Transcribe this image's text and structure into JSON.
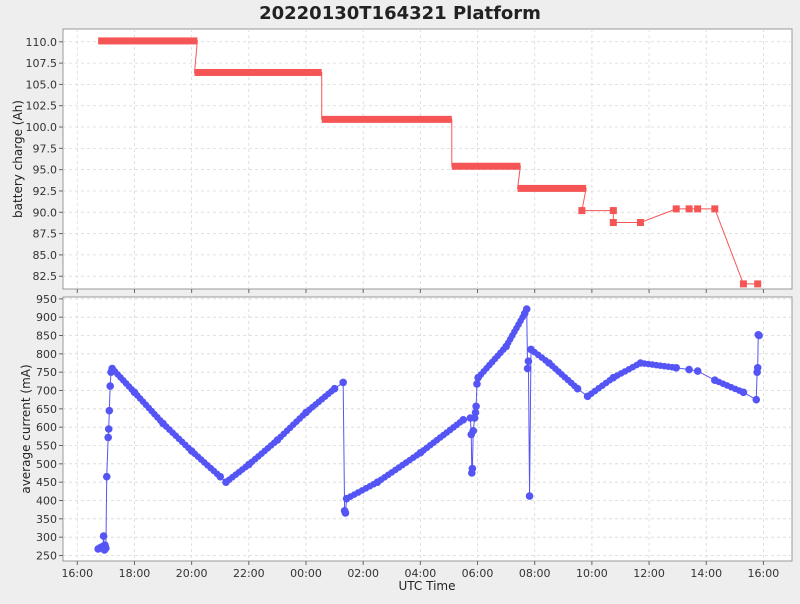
{
  "chart_data": {
    "title": "20220130T164321 Platform",
    "xlabel": "UTC Time",
    "x_unit": "hours since 16:00 UTC (Jan 30 → Jan 31)",
    "x_ticks": [
      {
        "t": 0,
        "label": "16:00"
      },
      {
        "t": 2,
        "label": "18:00"
      },
      {
        "t": 4,
        "label": "20:00"
      },
      {
        "t": 6,
        "label": "22:00"
      },
      {
        "t": 8,
        "label": "00:00"
      },
      {
        "t": 10,
        "label": "02:00"
      },
      {
        "t": 12,
        "label": "04:00"
      },
      {
        "t": 14,
        "label": "06:00"
      },
      {
        "t": 16,
        "label": "08:00"
      },
      {
        "t": 18,
        "label": "10:00"
      },
      {
        "t": 20,
        "label": "12:00"
      },
      {
        "t": 22,
        "label": "14:00"
      },
      {
        "t": 24,
        "label": "16:00"
      }
    ],
    "xlim": [
      -0.5,
      25
    ],
    "grid": true,
    "series_color": {
      "battery": "#f55555",
      "current": "#5555f5"
    },
    "panels": [
      {
        "type": "step-line",
        "ylabel": "battery charge (Ah)",
        "ylim": [
          81,
          111.5
        ],
        "yticks": [
          "82.5",
          "85.0",
          "87.5",
          "90.0",
          "92.5",
          "95.0",
          "97.5",
          "100.0",
          "102.5",
          "105.0",
          "107.5",
          "110.0"
        ],
        "series": [
          {
            "segments": [
              {
                "x0": 0.73,
                "x1": 4.2,
                "y": 110.1
              },
              {
                "x0": 4.1,
                "x1": 8.55,
                "y": 106.4
              },
              {
                "x0": 8.55,
                "x1": 13.1,
                "y": 100.9
              },
              {
                "x0": 13.1,
                "x1": 15.5,
                "y": 95.4
              },
              {
                "x0": 15.4,
                "x1": 17.8,
                "y": 92.8
              }
            ],
            "points": [
              {
                "x": 17.65,
                "y": 90.2
              },
              {
                "x": 18.75,
                "y": 90.2
              },
              {
                "x": 18.75,
                "y": 88.8
              },
              {
                "x": 19.7,
                "y": 88.8
              },
              {
                "x": 20.95,
                "y": 90.4
              },
              {
                "x": 21.4,
                "y": 90.4
              },
              {
                "x": 21.7,
                "y": 90.4
              },
              {
                "x": 22.3,
                "y": 90.4
              },
              {
                "x": 23.3,
                "y": 81.6
              },
              {
                "x": 23.8,
                "y": 81.6
              }
            ]
          }
        ]
      },
      {
        "type": "line",
        "ylabel": "average current (mA)",
        "ylim": [
          235,
          955
        ],
        "yticks": [
          "250",
          "300",
          "350",
          "400",
          "450",
          "500",
          "550",
          "600",
          "650",
          "700",
          "750",
          "800",
          "850",
          "900",
          "950"
        ],
        "series": [
          {
            "points": [
              {
                "x": 0.73,
                "y": 268
              },
              {
                "x": 0.82,
                "y": 272
              },
              {
                "x": 0.9,
                "y": 275
              },
              {
                "x": 0.92,
                "y": 303
              },
              {
                "x": 0.95,
                "y": 265
              },
              {
                "x": 0.97,
                "y": 278
              },
              {
                "x": 1.0,
                "y": 270
              },
              {
                "x": 1.03,
                "y": 465
              },
              {
                "x": 1.08,
                "y": 572
              },
              {
                "x": 1.1,
                "y": 595
              },
              {
                "x": 1.12,
                "y": 645
              },
              {
                "x": 1.15,
                "y": 712
              },
              {
                "x": 1.18,
                "y": 750
              },
              {
                "x": 1.22,
                "y": 760
              },
              {
                "x": 2.0,
                "y": 695
              },
              {
                "x": 3.0,
                "y": 610
              },
              {
                "x": 4.0,
                "y": 535
              },
              {
                "x": 5.0,
                "y": 465
              },
              {
                "x": 5.2,
                "y": 450
              },
              {
                "x": 6.0,
                "y": 498
              },
              {
                "x": 7.0,
                "y": 565
              },
              {
                "x": 8.0,
                "y": 640
              },
              {
                "x": 9.0,
                "y": 705
              },
              {
                "x": 9.3,
                "y": 722
              },
              {
                "x": 9.35,
                "y": 372
              },
              {
                "x": 9.38,
                "y": 366
              },
              {
                "x": 9.42,
                "y": 405
              },
              {
                "x": 10.5,
                "y": 450
              },
              {
                "x": 12.0,
                "y": 530
              },
              {
                "x": 13.5,
                "y": 620
              },
              {
                "x": 13.75,
                "y": 625
              },
              {
                "x": 13.78,
                "y": 580
              },
              {
                "x": 13.8,
                "y": 475
              },
              {
                "x": 13.82,
                "y": 487
              },
              {
                "x": 13.85,
                "y": 590
              },
              {
                "x": 13.9,
                "y": 625
              },
              {
                "x": 13.93,
                "y": 640
              },
              {
                "x": 13.95,
                "y": 657
              },
              {
                "x": 13.98,
                "y": 718
              },
              {
                "x": 14.02,
                "y": 735
              },
              {
                "x": 15.0,
                "y": 820
              },
              {
                "x": 15.65,
                "y": 910
              },
              {
                "x": 15.72,
                "y": 922
              },
              {
                "x": 15.75,
                "y": 760
              },
              {
                "x": 15.78,
                "y": 780
              },
              {
                "x": 15.82,
                "y": 412
              },
              {
                "x": 15.87,
                "y": 812
              },
              {
                "x": 16.5,
                "y": 775
              },
              {
                "x": 17.5,
                "y": 705
              },
              {
                "x": 17.85,
                "y": 684
              },
              {
                "x": 18.75,
                "y": 735
              },
              {
                "x": 19.7,
                "y": 775
              },
              {
                "x": 20.95,
                "y": 762
              },
              {
                "x": 21.4,
                "y": 757
              },
              {
                "x": 21.7,
                "y": 753
              },
              {
                "x": 22.3,
                "y": 728
              },
              {
                "x": 23.3,
                "y": 695
              },
              {
                "x": 23.75,
                "y": 675
              },
              {
                "x": 23.78,
                "y": 750
              },
              {
                "x": 23.8,
                "y": 762
              },
              {
                "x": 23.82,
                "y": 852
              },
              {
                "x": 23.85,
                "y": 850
              }
            ]
          }
        ]
      }
    ]
  }
}
